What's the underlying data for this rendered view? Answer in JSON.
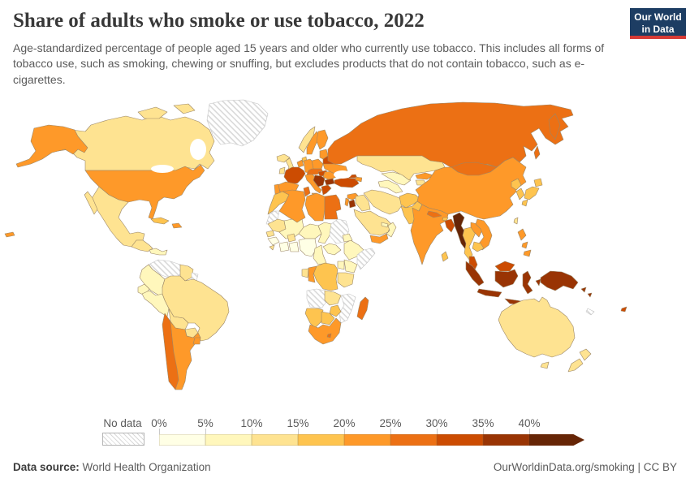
{
  "header": {
    "title": "Share of adults who smoke or use tobacco, 2022",
    "subtitle": "Age-standardized percentage of people aged 15 years and older who currently use tobacco. This includes all forms of tobacco use, such as smoking, chewing or snuffing, but excludes products that do not contain tobacco, such as e-cigarettes.",
    "logo": {
      "line1": "Our World",
      "line2": "in Data",
      "bg_color": "#1d3d63",
      "stripe_color": "#d73a35"
    }
  },
  "legend": {
    "no_data_label": "No data",
    "tick_labels": [
      "0%",
      "5%",
      "10%",
      "15%",
      "20%",
      "25%",
      "30%",
      "35%",
      "40%"
    ]
  },
  "footer": {
    "source_label": "Data source:",
    "source_value": " World Health Organization",
    "right_text": "OurWorldinData.org/smoking | CC BY"
  },
  "chart_data": {
    "type": "choropleth",
    "title": "Share of adults who smoke or use tobacco, 2022",
    "unit": "%",
    "year": "2022",
    "scale": {
      "thresholds": [
        0,
        5,
        10,
        15,
        20,
        25,
        30,
        35,
        40
      ],
      "colors": [
        "#FFFFE5",
        "#FFF7BC",
        "#FEE391",
        "#FEC44F",
        "#FE9929",
        "#EC7014",
        "#CC4C02",
        "#993404",
        "#662506"
      ],
      "no_data_fill": "hatched",
      "border_color": "#9b8667",
      "no_data_border_color": "#c4c4c4"
    },
    "countries": [
      {
        "id": "USA",
        "name": "United States",
        "value": 23
      },
      {
        "id": "CAN",
        "name": "Canada",
        "value": 12
      },
      {
        "id": "MEX",
        "name": "Mexico",
        "value": 13
      },
      {
        "id": "GRL",
        "name": "Greenland",
        "value": null
      },
      {
        "id": "GTM",
        "name": "Guatemala",
        "value": 11
      },
      {
        "id": "CRI",
        "name": "Costa Rica",
        "value": 9
      },
      {
        "id": "CUB",
        "name": "Cuba",
        "value": 17
      },
      {
        "id": "DOM",
        "name": "Dominican Republic",
        "value": 21
      },
      {
        "id": "VEN",
        "name": "Venezuela",
        "value": null
      },
      {
        "id": "GUY",
        "name": "Guyana",
        "value": 12
      },
      {
        "id": "GUF",
        "name": "French Guiana",
        "value": null
      },
      {
        "id": "COL",
        "name": "Colombia",
        "value": 8
      },
      {
        "id": "ECU",
        "name": "Ecuador",
        "value": 7
      },
      {
        "id": "PER",
        "name": "Peru",
        "value": 8
      },
      {
        "id": "BRA",
        "name": "Brazil",
        "value": 12
      },
      {
        "id": "BOL",
        "name": "Bolivia",
        "value": 13
      },
      {
        "id": "PRY",
        "name": "Paraguay",
        "value": 12
      },
      {
        "id": "CHL",
        "name": "Chile",
        "value": 28
      },
      {
        "id": "ARG",
        "name": "Argentina",
        "value": 22
      },
      {
        "id": "URY",
        "name": "Uruguay",
        "value": 21
      },
      {
        "id": "ISL",
        "name": "Iceland",
        "value": 12
      },
      {
        "id": "GBR",
        "name": "United Kingdom",
        "value": 13
      },
      {
        "id": "IRL",
        "name": "Ireland",
        "value": 14
      },
      {
        "id": "NOR",
        "name": "Norway",
        "value": 13
      },
      {
        "id": "SWE",
        "name": "Sweden",
        "value": 22
      },
      {
        "id": "FIN",
        "name": "Finland",
        "value": 21
      },
      {
        "id": "DNK",
        "name": "Denmark",
        "value": 17
      },
      {
        "id": "LTU",
        "name": "Lithuania",
        "value": 24
      },
      {
        "id": "BLR",
        "name": "Belarus",
        "value": 31
      },
      {
        "id": "POL",
        "name": "Poland",
        "value": 24
      },
      {
        "id": "DEU",
        "name": "Germany",
        "value": 24
      },
      {
        "id": "NLD",
        "name": "Netherlands",
        "value": 22
      },
      {
        "id": "FRA",
        "name": "France",
        "value": 33
      },
      {
        "id": "ESP",
        "name": "Spain",
        "value": 23
      },
      {
        "id": "PRT",
        "name": "Portugal",
        "value": 21
      },
      {
        "id": "ITA",
        "name": "Italy",
        "value": 23
      },
      {
        "id": "AUT",
        "name": "Austria",
        "value": 27
      },
      {
        "id": "HUN",
        "name": "Hungary",
        "value": 31
      },
      {
        "id": "ROU",
        "name": "Romania",
        "value": 24
      },
      {
        "id": "SRB",
        "name": "Serbia",
        "value": 38
      },
      {
        "id": "BGR",
        "name": "Bulgaria",
        "value": 37
      },
      {
        "id": "GRC",
        "name": "Greece",
        "value": 33
      },
      {
        "id": "UKR",
        "name": "Ukraine",
        "value": 23
      },
      {
        "id": "RUS",
        "name": "Russia",
        "value": 27
      },
      {
        "id": "TUR",
        "name": "Turkey",
        "value": 31
      },
      {
        "id": "GEO",
        "name": "Georgia",
        "value": 31
      },
      {
        "id": "AZE",
        "name": "Azerbaijan",
        "value": 22
      },
      {
        "id": "MAR",
        "name": "Morocco",
        "value": 17
      },
      {
        "id": "ESH",
        "name": "Western Sahara",
        "value": null
      },
      {
        "id": "DZA",
        "name": "Algeria",
        "value": 21
      },
      {
        "id": "TUN",
        "name": "Tunisia",
        "value": 26
      },
      {
        "id": "LBY",
        "name": "Libya",
        "value": 24
      },
      {
        "id": "EGY",
        "name": "Egypt",
        "value": 26
      },
      {
        "id": "MRT",
        "name": "Mauritania",
        "value": 12
      },
      {
        "id": "MLI",
        "name": "Mali",
        "value": 9
      },
      {
        "id": "NER",
        "name": "Niger",
        "value": 7
      },
      {
        "id": "TCD",
        "name": "Chad",
        "value": 8
      },
      {
        "id": "SDN",
        "name": "Sudan",
        "value": null
      },
      {
        "id": "SEN",
        "name": "Senegal",
        "value": 11
      },
      {
        "id": "GIN",
        "name": "Guinea",
        "value": 4
      },
      {
        "id": "SLE",
        "name": "Sierra Leone",
        "value": 13
      },
      {
        "id": "BFA",
        "name": "Burkina Faso",
        "value": 13
      },
      {
        "id": "CIV",
        "name": "Cote d'Ivoire",
        "value": 4
      },
      {
        "id": "GHA",
        "name": "Ghana",
        "value": 3
      },
      {
        "id": "NGA",
        "name": "Nigeria",
        "value": 4
      },
      {
        "id": "CMR",
        "name": "Cameroon",
        "value": 7
      },
      {
        "id": "CAF",
        "name": "Central African Republic",
        "value": 8
      },
      {
        "id": "ETH",
        "name": "Ethiopia",
        "value": 5
      },
      {
        "id": "ERI",
        "name": "Eritrea",
        "value": 8
      },
      {
        "id": "SOM",
        "name": "Somalia",
        "value": null
      },
      {
        "id": "KEN",
        "name": "Kenya",
        "value": 9
      },
      {
        "id": "UGA",
        "name": "Uganda",
        "value": 8
      },
      {
        "id": "COD",
        "name": "Democratic Republic of Congo",
        "value": 16
      },
      {
        "id": "COG",
        "name": "Congo",
        "value": 21
      },
      {
        "id": "GAB",
        "name": "Gabon",
        "value": 13
      },
      {
        "id": "TZA",
        "name": "Tanzania",
        "value": 13
      },
      {
        "id": "AGO",
        "name": "Angola",
        "value": null
      },
      {
        "id": "ZMB",
        "name": "Zambia",
        "value": 12
      },
      {
        "id": "MOZ",
        "name": "Mozambique",
        "value": null
      },
      {
        "id": "ZWE",
        "name": "Zimbabwe",
        "value": 16
      },
      {
        "id": "NAM",
        "name": "Namibia",
        "value": 18
      },
      {
        "id": "BWA",
        "name": "Botswana",
        "value": 17
      },
      {
        "id": "ZAF",
        "name": "South Africa",
        "value": 22
      },
      {
        "id": "LSO",
        "name": "Lesotho",
        "value": 27
      },
      {
        "id": "MDG",
        "name": "Madagascar",
        "value": 27
      },
      {
        "id": "SYR",
        "name": "Syria",
        "value": 22
      },
      {
        "id": "ISR",
        "name": "Israel",
        "value": 22
      },
      {
        "id": "JOR",
        "name": "Jordan",
        "value": 36
      },
      {
        "id": "IRQ",
        "name": "Iraq",
        "value": 14
      },
      {
        "id": "SAU",
        "name": "Saudi Arabia",
        "value": 13
      },
      {
        "id": "YEM",
        "name": "Yemen",
        "value": 21
      },
      {
        "id": "OMN",
        "name": "Oman",
        "value": 8
      },
      {
        "id": "ARE",
        "name": "United Arab Emirates",
        "value": 9
      },
      {
        "id": "IRN",
        "name": "Iran",
        "value": 12
      },
      {
        "id": "AFG",
        "name": "Afghanistan",
        "value": 17
      },
      {
        "id": "PAK",
        "name": "Pakistan",
        "value": 19
      },
      {
        "id": "TKM",
        "name": "Turkmenistan",
        "value": 7
      },
      {
        "id": "UZB",
        "name": "Uzbekistan",
        "value": 9
      },
      {
        "id": "KGZ",
        "name": "Kyrgyzstan",
        "value": 23
      },
      {
        "id": "TJK",
        "name": "Tajikistan",
        "value": 13
      },
      {
        "id": "KAZ",
        "name": "Kazakhstan",
        "value": 13
      },
      {
        "id": "IND",
        "name": "India",
        "value": 24
      },
      {
        "id": "NPL",
        "name": "Nepal",
        "value": 28
      },
      {
        "id": "BTN",
        "name": "Bhutan",
        "value": 18
      },
      {
        "id": "BGD",
        "name": "Bangladesh",
        "value": 34
      },
      {
        "id": "LKA",
        "name": "Sri Lanka",
        "value": 17
      },
      {
        "id": "MMR",
        "name": "Myanmar",
        "value": 43
      },
      {
        "id": "THA",
        "name": "Thailand",
        "value": 19
      },
      {
        "id": "LAO",
        "name": "Laos",
        "value": 24
      },
      {
        "id": "VNM",
        "name": "Vietnam",
        "value": 23
      },
      {
        "id": "KHM",
        "name": "Cambodia",
        "value": 19
      },
      {
        "id": "MYS",
        "name": "Malaysia",
        "value": 30
      },
      {
        "id": "CHN",
        "name": "China",
        "value": 24
      },
      {
        "id": "MNG",
        "name": "Mongolia",
        "value": 27
      },
      {
        "id": "PRK",
        "name": "North Korea",
        "value": 17
      },
      {
        "id": "KOR",
        "name": "South Korea",
        "value": 17
      },
      {
        "id": "JPN",
        "name": "Japan",
        "value": 17
      },
      {
        "id": "TWN",
        "name": "Taiwan",
        "value": 13
      },
      {
        "id": "PHL",
        "name": "Philippines",
        "value": 23
      },
      {
        "id": "IDN",
        "name": "Indonesia",
        "value": 38
      },
      {
        "id": "TLS",
        "name": "Timor-Leste",
        "value": 39
      },
      {
        "id": "PNG",
        "name": "Papua New Guinea",
        "value": 39
      },
      {
        "id": "SLB",
        "name": "Solomon Islands",
        "value": 37
      },
      {
        "id": "FJI",
        "name": "Fiji",
        "value": 31
      },
      {
        "id": "NCL",
        "name": "New Caledonia",
        "value": null
      },
      {
        "id": "AUS",
        "name": "Australia",
        "value": 13
      },
      {
        "id": "NZL",
        "name": "New Zealand",
        "value": 12
      }
    ]
  }
}
